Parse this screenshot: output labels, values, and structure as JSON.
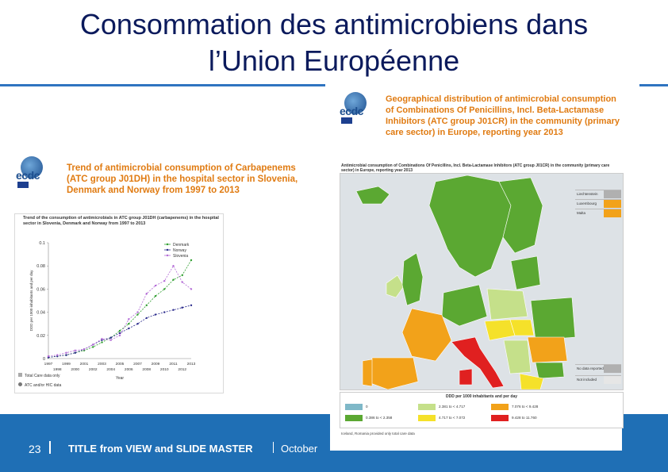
{
  "slide": {
    "title_line1": "Consommation des antimicrobiens dans",
    "title_line2": "l’Union Européenne"
  },
  "footer": {
    "page_number": "23",
    "title": "TITLE from VIEW and SLIDE MASTER",
    "date": "October"
  },
  "left_panel": {
    "logo_text": "ecdc",
    "heading": "Trend of antimicrobial consumption of Carbapenems (ATC group J01DH) in the hospital sector in Slovenia, Denmark and Norway from 1997 to 2013",
    "chart_caption": "Trend of the consumption of antimicrobials in ATC group J01DH (carbapenems) in the hospital sector in Slovenia, Denmark and Norway from 1997 to 2013",
    "legend_notes": [
      "Total Care data only",
      "ATC and/or HIC data"
    ]
  },
  "chart_data": {
    "type": "line",
    "title": "",
    "xlabel": "Year",
    "ylabel": "DDD per 1000 inhabitants and per day",
    "x": [
      1997,
      1998,
      1999,
      2000,
      2001,
      2002,
      2003,
      2004,
      2005,
      2006,
      2007,
      2008,
      2009,
      2010,
      2011,
      2012,
      2013
    ],
    "x_tick_labels_top": [
      "1997",
      "1999",
      "2001",
      "2003",
      "2005",
      "2007",
      "2009",
      "2011",
      "2013"
    ],
    "x_tick_labels_bottom": [
      "1998",
      "2000",
      "2002",
      "2004",
      "2006",
      "2008",
      "2010",
      "2012"
    ],
    "y_ticks": [
      "0",
      "0.02",
      "0.04",
      "0.06",
      "0.08",
      "0.1"
    ],
    "ylim": [
      0,
      0.1
    ],
    "legend_position": "top-right",
    "series": [
      {
        "name": "Denmark",
        "color": "#2e9e2e",
        "values": [
          0.001,
          0.002,
          0.003,
          0.005,
          0.007,
          0.01,
          0.014,
          0.018,
          0.024,
          0.03,
          0.038,
          0.046,
          0.054,
          0.06,
          0.068,
          0.072,
          0.085
        ]
      },
      {
        "name": "Norway",
        "color": "#2b2b8c",
        "values": [
          0.001,
          0.002,
          0.003,
          0.005,
          0.008,
          0.012,
          0.016,
          0.018,
          0.022,
          0.026,
          0.03,
          0.035,
          0.038,
          0.04,
          0.042,
          0.044,
          0.046
        ]
      },
      {
        "name": "Slovenia",
        "color": "#b36bd6",
        "values": [
          0.002,
          0.003,
          0.005,
          0.007,
          0.008,
          0.012,
          0.017,
          0.016,
          0.02,
          0.034,
          0.04,
          0.056,
          0.063,
          0.067,
          0.08,
          0.066,
          0.06
        ]
      }
    ]
  },
  "right_panel": {
    "logo_text": "ecdc",
    "heading": "Geographical distribution of antimicrobial consumption of Combinations Of Penicillins, Incl. Beta-Lactamase Inhibitors (ATC group J01CR) in the community (primary care sector) in Europe, reporting year 2013",
    "map_caption": "Antimicrobial consumption of Combinations Of Penicillins, Incl. Beta-Lactamase Inhibitors (ATC group J01CR) in the community (primary care sector) in Europe, reporting year 2013",
    "side_legend": [
      {
        "label": "Liechtenstein",
        "color": "#b0b0b0"
      },
      {
        "label": "Luxembourg",
        "color": "#f2a21a"
      },
      {
        "label": "Malta",
        "color": "#f2a21a"
      }
    ],
    "no_data": [
      {
        "label": "No data reported",
        "color": "#b0b0b0"
      },
      {
        "label": "Not included",
        "color": "#e6e6e6"
      }
    ],
    "legend_title": "DDD per 1000 inhabitants and per day",
    "legend_items": [
      {
        "label": "0",
        "color": "#7fb8c8"
      },
      {
        "label": "2.381 to < 4.717",
        "color": "#c5e08a"
      },
      {
        "label": "7.076 to < 9.428",
        "color": "#f2a21a"
      },
      {
        "label": "0.386 to < 2.358",
        "color": "#5ba832"
      },
      {
        "label": "4.717 to < 7.072",
        "color": "#f5e12a"
      },
      {
        "label": "9.428 to 11.760",
        "color": "#e02020"
      }
    ],
    "note": "Iceland, Romania provided only total care data"
  },
  "colors": {
    "title": "#0b1a5c",
    "rule": "#2f74c0",
    "footer_bg": "#1f6fb5",
    "heading_orange": "#e07b12"
  }
}
